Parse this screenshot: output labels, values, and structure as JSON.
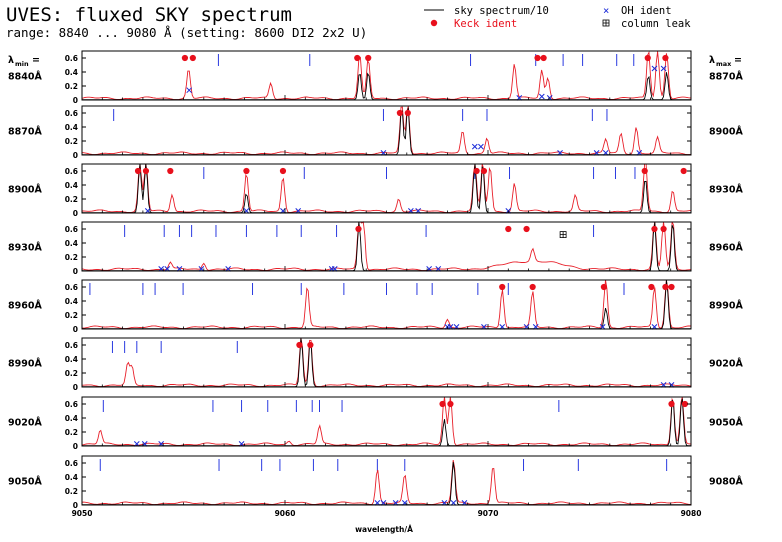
{
  "header": {
    "title": "UVES: fluxed SKY spectrum",
    "subtitle": "range: 8840 ... 9080 Å (setting: 8600 DI2 2x2 U)"
  },
  "legend": {
    "sky_label": "sky spectrum/10",
    "keck_label": "Keck ident",
    "oh_label": "OH ident",
    "leak_label": "column leak"
  },
  "labels": {
    "lambda_min": "λ",
    "lambda_min_sub": "min",
    "lambda_max": "λ",
    "lambda_max_sub": "max",
    "eq": "="
  },
  "colors": {
    "flux": "#e8202a",
    "sky": "#000000",
    "keck": "#e8101c",
    "oh": "#1a2ad8",
    "ident_tick": "#2a3ae0",
    "frame": "#000000"
  },
  "chart_data": {
    "type": "line",
    "xlabel": "wavelength/Å",
    "ylim": [
      0,
      0.7
    ],
    "yticks": [
      "0",
      "0.2",
      "0.4",
      "0.6"
    ],
    "bottom_xticks": [
      "9050",
      "9060",
      "9070",
      "9080"
    ],
    "panels": [
      {
        "lmin": "8840Å",
        "lmax": "8870Å",
        "lines": [
          {
            "c": 0.175,
            "h": 0.42
          },
          {
            "c": 0.31,
            "h": 0.22
          },
          {
            "c": 0.456,
            "h": 0.62
          },
          {
            "c": 0.47,
            "h": 0.55
          },
          {
            "c": 0.71,
            "h": 0.5
          },
          {
            "c": 0.755,
            "h": 0.4
          },
          {
            "c": 0.765,
            "h": 0.3
          },
          {
            "c": 0.93,
            "h": 0.7
          },
          {
            "c": 0.945,
            "h": 0.68
          },
          {
            "c": 0.96,
            "h": 0.66
          }
        ],
        "sky": [
          {
            "c": 0.456,
            "h": 0.4
          },
          {
            "c": 0.47,
            "h": 0.4
          },
          {
            "c": 0.93,
            "h": 0.35
          },
          {
            "c": 0.96,
            "h": 0.4
          }
        ],
        "keck": [
          {
            "x": 0.169,
            "y": 0.6
          },
          {
            "x": 0.182,
            "y": 0.6
          },
          {
            "x": 0.452,
            "y": 0.6
          },
          {
            "x": 0.47,
            "y": 0.6
          },
          {
            "x": 0.748,
            "y": 0.6
          },
          {
            "x": 0.758,
            "y": 0.6
          },
          {
            "x": 0.929,
            "y": 0.6
          },
          {
            "x": 0.958,
            "y": 0.6
          }
        ],
        "oh": [
          {
            "x": 0.176,
            "y": 0.14
          },
          {
            "x": 0.718,
            "y": 0.03
          },
          {
            "x": 0.755,
            "y": 0.05
          },
          {
            "x": 0.768,
            "y": 0.03
          },
          {
            "x": 0.94,
            "y": 0.45
          },
          {
            "x": 0.955,
            "y": 0.45
          }
        ],
        "ticks": [
          0.224,
          0.374,
          0.638,
          0.745,
          0.79,
          0.822,
          0.878,
          0.906
        ]
      },
      {
        "lmin": "8870Å",
        "lmax": "8900Å",
        "lines": [
          {
            "c": 0.525,
            "h": 0.7
          },
          {
            "c": 0.535,
            "h": 0.7
          },
          {
            "c": 0.625,
            "h": 0.32
          },
          {
            "c": 0.665,
            "h": 0.22
          },
          {
            "c": 0.86,
            "h": 0.2
          },
          {
            "c": 0.885,
            "h": 0.28
          },
          {
            "c": 0.91,
            "h": 0.38
          },
          {
            "c": 0.945,
            "h": 0.22
          }
        ],
        "sky": [
          {
            "c": 0.525,
            "h": 0.7
          },
          {
            "c": 0.535,
            "h": 0.7
          }
        ],
        "keck": [
          {
            "x": 0.522,
            "y": 0.6
          },
          {
            "x": 0.535,
            "y": 0.6
          }
        ],
        "oh": [
          {
            "x": 0.495,
            "y": 0.03
          },
          {
            "x": 0.645,
            "y": 0.12
          },
          {
            "x": 0.655,
            "y": 0.12
          },
          {
            "x": 0.785,
            "y": 0.03
          },
          {
            "x": 0.845,
            "y": 0.03
          },
          {
            "x": 0.86,
            "y": 0.03
          },
          {
            "x": 0.915,
            "y": 0.03
          }
        ],
        "ticks": [
          0.052,
          0.495,
          0.625,
          0.665,
          0.838,
          0.862
        ]
      },
      {
        "lmin": "8900Å",
        "lmax": "8930Å",
        "lines": [
          {
            "c": 0.095,
            "h": 0.7
          },
          {
            "c": 0.105,
            "h": 0.7
          },
          {
            "c": 0.148,
            "h": 0.25
          },
          {
            "c": 0.27,
            "h": 0.55
          },
          {
            "c": 0.33,
            "h": 0.5
          },
          {
            "c": 0.52,
            "h": 0.18
          },
          {
            "c": 0.645,
            "h": 0.7
          },
          {
            "c": 0.658,
            "h": 0.7
          },
          {
            "c": 0.67,
            "h": 0.65
          },
          {
            "c": 0.71,
            "h": 0.4
          },
          {
            "c": 0.81,
            "h": 0.22
          },
          {
            "c": 0.925,
            "h": 0.78
          },
          {
            "c": 0.97,
            "h": 0.3
          }
        ],
        "sky": [
          {
            "c": 0.095,
            "h": 0.7
          },
          {
            "c": 0.105,
            "h": 0.7
          },
          {
            "c": 0.27,
            "h": 0.28
          },
          {
            "c": 0.645,
            "h": 0.7
          },
          {
            "c": 0.658,
            "h": 0.7
          },
          {
            "c": 0.925,
            "h": 0.5
          }
        ],
        "keck": [
          {
            "x": 0.092,
            "y": 0.6
          },
          {
            "x": 0.105,
            "y": 0.6
          },
          {
            "x": 0.145,
            "y": 0.6
          },
          {
            "x": 0.27,
            "y": 0.6
          },
          {
            "x": 0.33,
            "y": 0.6
          },
          {
            "x": 0.648,
            "y": 0.6
          },
          {
            "x": 0.66,
            "y": 0.6
          },
          {
            "x": 0.924,
            "y": 0.6
          },
          {
            "x": 0.988,
            "y": 0.6
          }
        ],
        "oh": [
          {
            "x": 0.108,
            "y": 0.03
          },
          {
            "x": 0.27,
            "y": 0.03
          },
          {
            "x": 0.33,
            "y": 0.03
          },
          {
            "x": 0.355,
            "y": 0.03
          },
          {
            "x": 0.54,
            "y": 0.03
          },
          {
            "x": 0.552,
            "y": 0.03
          },
          {
            "x": 0.7,
            "y": 0.03
          }
        ],
        "ticks": [
          0.2,
          0.365,
          0.5,
          0.645,
          0.702,
          0.84,
          0.876,
          0.908
        ]
      },
      {
        "lmin": "8930Å",
        "lmax": "8960Å",
        "lines": [
          {
            "c": 0.145,
            "h": 0.1
          },
          {
            "c": 0.2,
            "h": 0.1
          },
          {
            "c": 0.455,
            "h": 0.7
          },
          {
            "c": 0.462,
            "h": 0.7
          },
          {
            "c": 0.74,
            "h": 0.18
          },
          {
            "c": 0.94,
            "h": 0.7
          },
          {
            "c": 0.955,
            "h": 0.7
          },
          {
            "c": 0.97,
            "h": 0.7
          }
        ],
        "sky": [
          {
            "c": 0.455,
            "h": 0.7
          },
          {
            "c": 0.94,
            "h": 0.7
          },
          {
            "c": 0.97,
            "h": 0.7
          }
        ],
        "keck": [
          {
            "x": 0.454,
            "y": 0.6
          },
          {
            "x": 0.7,
            "y": 0.6
          },
          {
            "x": 0.73,
            "y": 0.6
          },
          {
            "x": 0.94,
            "y": 0.6
          },
          {
            "x": 0.955,
            "y": 0.6
          }
        ],
        "leak": [
          {
            "x": 0.79,
            "y": 0.52
          }
        ],
        "oh": [
          {
            "x": 0.13,
            "y": 0.03
          },
          {
            "x": 0.14,
            "y": 0.03
          },
          {
            "x": 0.16,
            "y": 0.03
          },
          {
            "x": 0.196,
            "y": 0.03
          },
          {
            "x": 0.24,
            "y": 0.03
          },
          {
            "x": 0.41,
            "y": 0.03
          },
          {
            "x": 0.415,
            "y": 0.03
          },
          {
            "x": 0.57,
            "y": 0.03
          },
          {
            "x": 0.585,
            "y": 0.03
          }
        ],
        "ticks": [
          0.07,
          0.135,
          0.16,
          0.18,
          0.22,
          0.27,
          0.32,
          0.36,
          0.418,
          0.565,
          0.84
        ]
      },
      {
        "lmin": "8960Å",
        "lmax": "8990Å",
        "lines": [
          {
            "c": 0.37,
            "h": 0.58
          },
          {
            "c": 0.6,
            "h": 0.12
          },
          {
            "c": 0.69,
            "h": 0.56
          },
          {
            "c": 0.74,
            "h": 0.5
          },
          {
            "c": 0.86,
            "h": 0.7
          },
          {
            "c": 0.94,
            "h": 0.58
          },
          {
            "c": 0.96,
            "h": 0.7
          }
        ],
        "sky": [
          {
            "c": 0.86,
            "h": 0.3
          },
          {
            "c": 0.96,
            "h": 0.7
          }
        ],
        "keck": [
          {
            "x": 0.69,
            "y": 0.6
          },
          {
            "x": 0.74,
            "y": 0.6
          },
          {
            "x": 0.857,
            "y": 0.6
          },
          {
            "x": 0.935,
            "y": 0.6
          },
          {
            "x": 0.958,
            "y": 0.6
          },
          {
            "x": 0.968,
            "y": 0.6
          }
        ],
        "oh": [
          {
            "x": 0.6,
            "y": 0.03
          },
          {
            "x": 0.605,
            "y": 0.03
          },
          {
            "x": 0.615,
            "y": 0.03
          },
          {
            "x": 0.66,
            "y": 0.03
          },
          {
            "x": 0.69,
            "y": 0.03
          },
          {
            "x": 0.73,
            "y": 0.03
          },
          {
            "x": 0.745,
            "y": 0.03
          },
          {
            "x": 0.855,
            "y": 0.03
          },
          {
            "x": 0.94,
            "y": 0.03
          }
        ],
        "ticks": [
          0.013,
          0.1,
          0.12,
          0.166,
          0.28,
          0.36,
          0.43,
          0.5,
          0.55,
          0.575,
          0.65,
          0.7,
          0.89
        ]
      },
      {
        "lmin": "8990Å",
        "lmax": "9020Å",
        "lines": [
          {
            "c": 0.075,
            "h": 0.3
          },
          {
            "c": 0.082,
            "h": 0.25
          },
          {
            "c": 0.36,
            "h": 0.7
          },
          {
            "c": 0.375,
            "h": 0.7
          }
        ],
        "sky": [
          {
            "c": 0.36,
            "h": 0.7
          },
          {
            "c": 0.375,
            "h": 0.7
          }
        ],
        "keck": [
          {
            "x": 0.357,
            "y": 0.6
          },
          {
            "x": 0.375,
            "y": 0.6
          }
        ],
        "oh": [
          {
            "x": 0.955,
            "y": 0.03
          },
          {
            "x": 0.968,
            "y": 0.03
          }
        ],
        "ticks": [
          0.05,
          0.07,
          0.09,
          0.13,
          0.255
        ]
      },
      {
        "lmin": "9020Å",
        "lmax": "9050Å",
        "lines": [
          {
            "c": 0.03,
            "h": 0.2
          },
          {
            "c": 0.34,
            "h": 0.05
          },
          {
            "c": 0.39,
            "h": 0.26
          },
          {
            "c": 0.595,
            "h": 0.7
          },
          {
            "c": 0.605,
            "h": 0.7
          },
          {
            "c": 0.97,
            "h": 0.7
          },
          {
            "c": 0.985,
            "h": 0.7
          }
        ],
        "sky": [
          {
            "c": 0.595,
            "h": 0.38
          },
          {
            "c": 0.97,
            "h": 0.7
          },
          {
            "c": 0.985,
            "h": 0.7
          }
        ],
        "keck": [
          {
            "x": 0.592,
            "y": 0.6
          },
          {
            "x": 0.605,
            "y": 0.6
          },
          {
            "x": 0.968,
            "y": 0.6
          },
          {
            "x": 0.99,
            "y": 0.6
          }
        ],
        "oh": [
          {
            "x": 0.09,
            "y": 0.03
          },
          {
            "x": 0.103,
            "y": 0.03
          },
          {
            "x": 0.13,
            "y": 0.03
          },
          {
            "x": 0.262,
            "y": 0.03
          }
        ],
        "ticks": [
          0.035,
          0.215,
          0.262,
          0.305,
          0.352,
          0.378,
          0.39,
          0.427,
          0.783
        ]
      },
      {
        "lmin": "9050Å",
        "lmax": "9080Å",
        "lines": [
          {
            "c": 0.485,
            "h": 0.5
          },
          {
            "c": 0.53,
            "h": 0.4
          },
          {
            "c": 0.61,
            "h": 0.62
          },
          {
            "c": 0.675,
            "h": 0.55
          }
        ],
        "sky": [
          {
            "c": 0.61,
            "h": 0.62
          }
        ],
        "keck": [],
        "oh": [
          {
            "x": 0.485,
            "y": 0.03
          },
          {
            "x": 0.495,
            "y": 0.03
          },
          {
            "x": 0.515,
            "y": 0.03
          },
          {
            "x": 0.53,
            "y": 0.03
          },
          {
            "x": 0.595,
            "y": 0.03
          },
          {
            "x": 0.61,
            "y": 0.03
          },
          {
            "x": 0.628,
            "y": 0.03
          }
        ],
        "ticks": [
          0.03,
          0.225,
          0.295,
          0.325,
          0.38,
          0.42,
          0.485,
          0.53,
          0.725,
          0.815,
          0.96
        ]
      }
    ]
  }
}
